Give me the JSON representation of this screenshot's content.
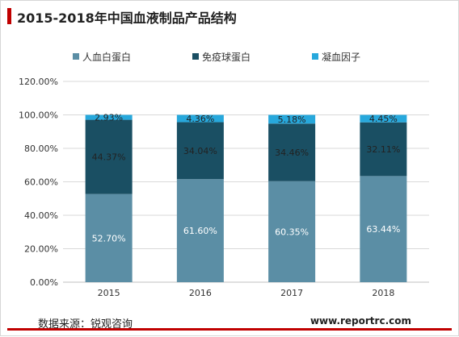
{
  "title": "2015-2018年中国血液制品产品结构",
  "source": "数据来源：锐观咨询",
  "website": "www.reportrc.com",
  "colors": {
    "accent": "#c00000",
    "series": [
      "#5b8ea5",
      "#1a4f63",
      "#27a8dc"
    ]
  },
  "chart_data": {
    "type": "bar",
    "stacked": true,
    "categories": [
      "2015",
      "2016",
      "2017",
      "2018"
    ],
    "series": [
      {
        "name": "人血白蛋白",
        "values": [
          52.7,
          61.6,
          60.35,
          63.44
        ],
        "labels": [
          "52.70%",
          "61.60%",
          "60.35%",
          "63.44%"
        ]
      },
      {
        "name": "免疫球蛋白",
        "values": [
          44.37,
          34.04,
          34.46,
          32.11
        ],
        "labels": [
          "44.37%",
          "34.04%",
          "34.46%",
          "32.11%"
        ]
      },
      {
        "name": "凝血因子",
        "values": [
          2.93,
          4.36,
          5.18,
          4.45
        ],
        "labels": [
          "2.93%",
          "4.36%",
          "5.18%",
          "4.45%"
        ]
      }
    ],
    "yticks": [
      "0.00%",
      "20.00%",
      "40.00%",
      "60.00%",
      "80.00%",
      "100.00%",
      "120.00%"
    ],
    "ylim": [
      0,
      120
    ],
    "grid": true,
    "legend_position": "top"
  }
}
